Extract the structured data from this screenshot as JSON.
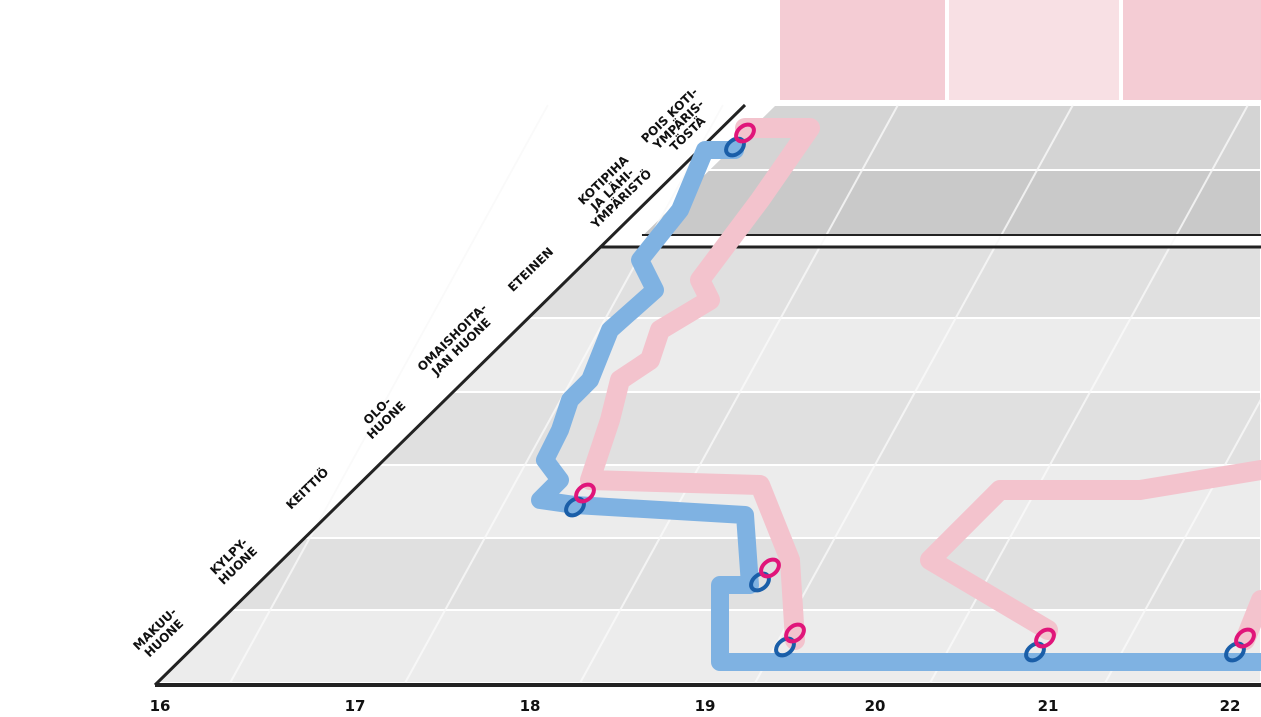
{
  "rooms": [
    {
      "lines": [
        "MAKUU-",
        "HUONE"
      ]
    },
    {
      "lines": [
        "KYLPY-",
        "HUONE"
      ]
    },
    {
      "lines": [
        "KEITTIÖ"
      ]
    },
    {
      "lines": [
        "OLO-",
        "HUONE"
      ]
    },
    {
      "lines": [
        "OMAISHOITA-",
        "JAN HUONE"
      ]
    },
    {
      "lines": [
        "ETEINEN"
      ]
    },
    {
      "lines": [
        "KOTIPIHA",
        "JA LÄHI-",
        "YMPÄRISTÖ"
      ]
    },
    {
      "lines": [
        "POIS KOTI-",
        "YMPÄRIS-",
        "TÖSTÄ"
      ]
    }
  ],
  "hours": [
    16,
    17,
    18,
    19,
    20,
    21,
    22
  ]
}
